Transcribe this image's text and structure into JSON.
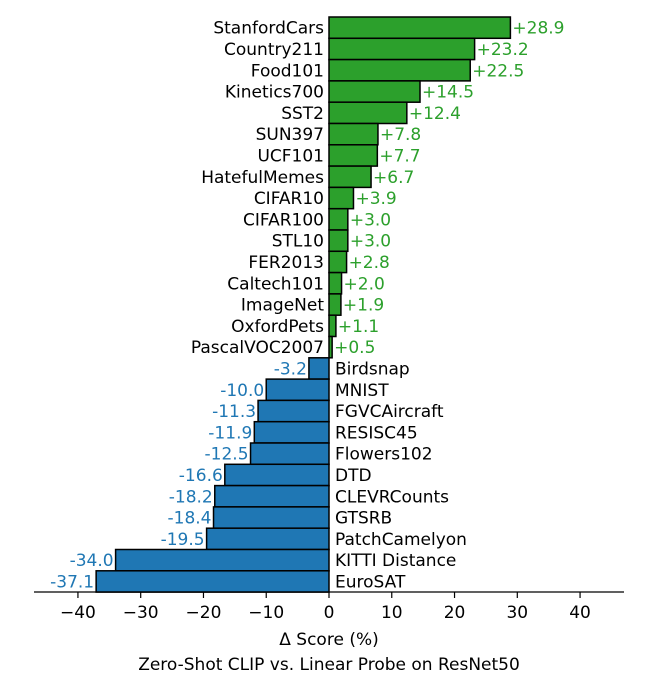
{
  "chart_data": {
    "type": "bar",
    "orientation": "horizontal",
    "categories": [
      "StanfordCars",
      "Country211",
      "Food101",
      "Kinetics700",
      "SST2",
      "SUN397",
      "UCF101",
      "HatefulMemes",
      "CIFAR10",
      "CIFAR100",
      "STL10",
      "FER2013",
      "Caltech101",
      "ImageNet",
      "OxfordPets",
      "PascalVOC2007",
      "Birdsnap",
      "MNIST",
      "FGVCAircraft",
      "RESISC45",
      "Flowers102",
      "DTD",
      "CLEVRCounts",
      "GTSRB",
      "PatchCamelyon",
      "KITTI Distance",
      "EuroSAT"
    ],
    "values": [
      28.9,
      23.2,
      22.5,
      14.5,
      12.4,
      7.8,
      7.7,
      6.7,
      3.9,
      3.0,
      3.0,
      2.8,
      2.0,
      1.9,
      1.1,
      0.5,
      -3.2,
      -10.0,
      -11.3,
      -11.9,
      -12.5,
      -16.6,
      -18.2,
      -18.4,
      -19.5,
      -34.0,
      -37.1
    ],
    "data_labels": [
      "+28.9",
      "+23.2",
      "+22.5",
      "+14.5",
      "+12.4",
      "+7.8",
      "+7.7",
      "+6.7",
      "+3.9",
      "+3.0",
      "+3.0",
      "+2.8",
      "+2.0",
      "+1.9",
      "+1.1",
      "+0.5",
      "-3.2",
      "-10.0",
      "-11.3",
      "-11.9",
      "-12.5",
      "-16.6",
      "-18.2",
      "-18.4",
      "-19.5",
      "-34.0",
      "-37.1"
    ],
    "xlabel": "Δ Score (%)",
    "title": "Zero-Shot CLIP vs. Linear Probe on ResNet50",
    "xlim": [
      -47,
      47
    ],
    "xticks": [
      -40,
      -30,
      -20,
      -10,
      0,
      10,
      20,
      30,
      40
    ],
    "xtick_labels": [
      "−40",
      "−30",
      "−20",
      "−10",
      "0",
      "10",
      "20",
      "30",
      "40"
    ],
    "colors": {
      "positive": "#2ca02c",
      "negative": "#1f77b4",
      "edge": "#000000"
    },
    "grid": false
  }
}
